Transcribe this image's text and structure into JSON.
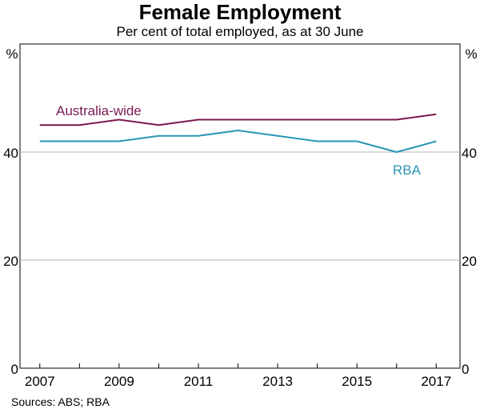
{
  "chart_data": {
    "type": "line",
    "title": "Female Employment",
    "subtitle": "Per cent of total employed, as at 30 June",
    "unit_left": "%",
    "unit_right": "%",
    "x": [
      2007,
      2008,
      2009,
      2010,
      2011,
      2012,
      2013,
      2014,
      2015,
      2016,
      2017
    ],
    "x_ticks": [
      "2007",
      "2009",
      "2011",
      "2013",
      "2015",
      "2017"
    ],
    "y_ticks": [
      "0",
      "20",
      "40"
    ],
    "ylim": [
      0,
      60
    ],
    "series": [
      {
        "name": "Australia-wide",
        "color": "#7b1a4f",
        "values": [
          45,
          45,
          46,
          45,
          46,
          46,
          46,
          46,
          46,
          46,
          47
        ]
      },
      {
        "name": "RBA",
        "color": "#2a96b4",
        "values": [
          42,
          42,
          42,
          43,
          43,
          44,
          43,
          42,
          42,
          40,
          42
        ]
      }
    ],
    "source": "Sources: ABS; RBA"
  }
}
